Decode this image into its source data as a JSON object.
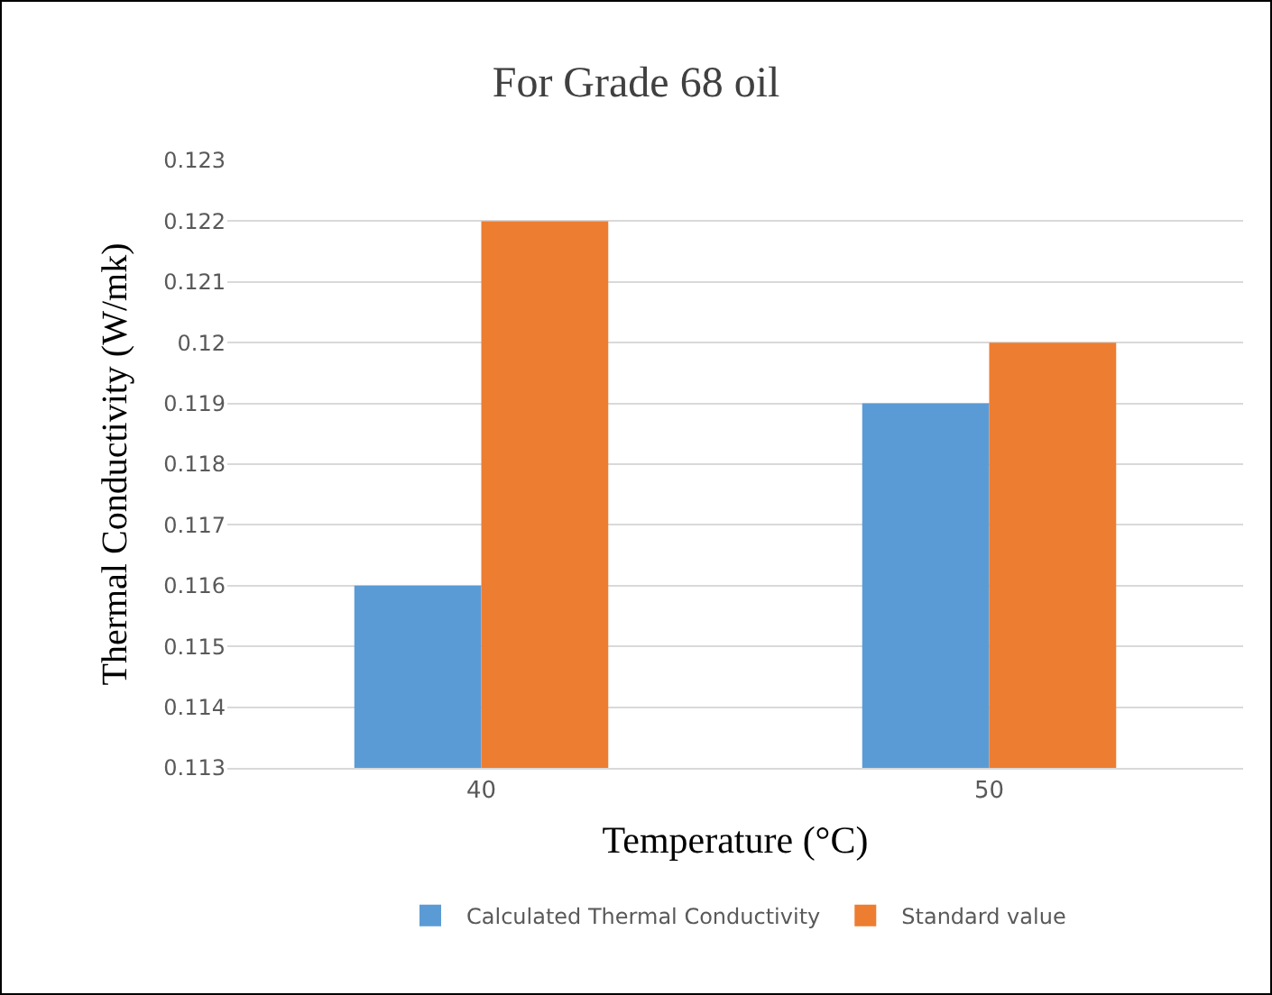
{
  "chart_data": {
    "type": "bar",
    "title": "For Grade 68 oil",
    "xlabel": "Temperature (°C)",
    "ylabel": "Thermal Conductivity (W/mk)",
    "categories": [
      "40",
      "50"
    ],
    "series": [
      {
        "name": "Calculated Thermal Conductivity",
        "color": "#5b9bd5",
        "values": [
          0.116,
          0.119
        ]
      },
      {
        "name": "Standard value",
        "color": "#ed7d31",
        "values": [
          0.122,
          0.12
        ]
      }
    ],
    "ylim": [
      0.113,
      0.123
    ],
    "yticks": [
      0.113,
      0.114,
      0.115,
      0.116,
      0.117,
      0.118,
      0.119,
      0.12,
      0.121,
      0.122,
      0.123
    ],
    "grid": "y",
    "legend": "bottom"
  }
}
